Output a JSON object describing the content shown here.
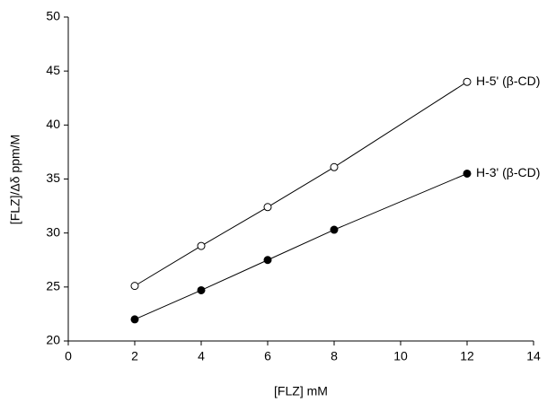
{
  "chart_data": {
    "type": "line",
    "x_label": "[FLZ] mM",
    "y_label": "[FLZ]/Δδ ppm/M",
    "xlim": [
      0,
      14
    ],
    "xticks": [
      0,
      2,
      4,
      6,
      8,
      10,
      12,
      14
    ],
    "ylim": [
      20,
      50
    ],
    "yticks": [
      20,
      25,
      30,
      35,
      40,
      45,
      50
    ],
    "grid": false,
    "series": [
      {
        "name": "H-5' (β-CD)",
        "color": "#000000",
        "marker_fill": "#ffffff",
        "x": [
          2,
          4,
          6,
          8,
          12
        ],
        "values": [
          25.1,
          28.8,
          32.4,
          36.1,
          44.0
        ]
      },
      {
        "name": "H-3' (β-CD)",
        "color": "#000000",
        "marker_fill": "#000000",
        "x": [
          2,
          4,
          6,
          8,
          12
        ],
        "values": [
          22.0,
          24.7,
          27.5,
          30.3,
          35.5
        ]
      }
    ]
  }
}
